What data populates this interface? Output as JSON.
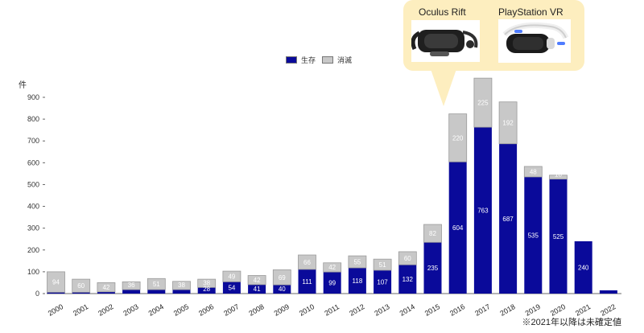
{
  "chart_data": {
    "type": "bar",
    "stacked": true,
    "y_unit": "件",
    "categories": [
      "2000",
      "2001",
      "2002",
      "2003",
      "2004",
      "2005",
      "2006",
      "2007",
      "2008",
      "2009",
      "2010",
      "2011",
      "2012",
      "2013",
      "2014",
      "2015",
      "2016",
      "2017",
      "2018",
      "2019",
      "2020",
      "2021",
      "2022"
    ],
    "series": [
      {
        "name": "生存",
        "color": "#0a0a9a",
        "values": [
          6,
          6,
          8,
          18,
          18,
          18,
          28,
          54,
          41,
          40,
          111,
          99,
          118,
          107,
          132,
          235,
          604,
          763,
          687,
          535,
          525,
          240,
          15
        ],
        "labels": [
          "",
          "",
          "",
          "",
          "",
          "",
          "28",
          "54",
          "41",
          "40",
          "111",
          "99",
          "118",
          "107",
          "132",
          "235",
          "604",
          "763",
          "687",
          "535",
          "525",
          "240",
          ""
        ]
      },
      {
        "name": "消滅",
        "color": "#c8c8c8",
        "values": [
          94,
          60,
          42,
          36,
          51,
          38,
          38,
          49,
          42,
          69,
          66,
          42,
          55,
          51,
          60,
          82,
          220,
          225,
          192,
          48,
          18,
          0,
          0
        ],
        "labels": [
          "94",
          "60",
          "42",
          "36",
          "51",
          "38",
          "38",
          "49",
          "42",
          "69",
          "66",
          "42",
          "55",
          "51",
          "60",
          "82",
          "220",
          "225",
          "192",
          "48",
          "18",
          "",
          ""
        ]
      }
    ],
    "ylim": [
      0,
      1000
    ],
    "yticks": [
      0,
      100,
      200,
      300,
      400,
      500,
      600,
      700,
      800,
      900
    ],
    "legend_position": "top-center",
    "grid": false
  },
  "callout": {
    "left_label": "Oculus Rift",
    "right_label": "PlayStation VR",
    "left_icon": "vr-headset-icon",
    "right_icon": "playstation-vr-icon"
  },
  "note": "※2021年以降は未確定値"
}
